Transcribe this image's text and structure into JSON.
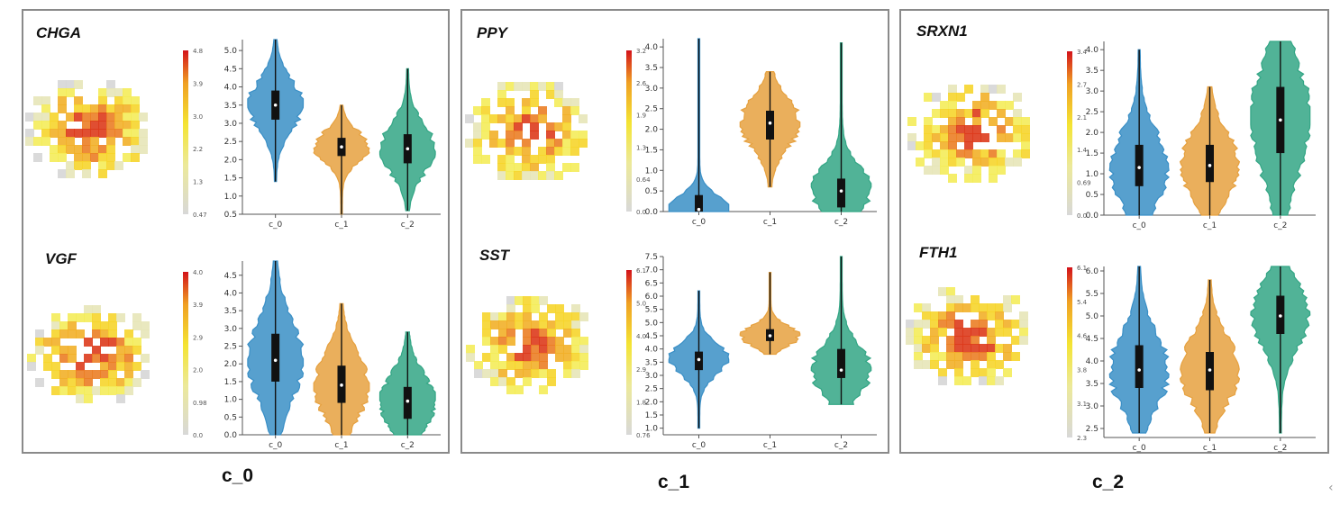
{
  "colors": {
    "c_0": "#3a8fc6",
    "c_1": "#e6a13f",
    "c_2": "#33a685",
    "heat_low": "#d3d3d3",
    "heat_mid": "#f2e431",
    "heat_high": "#d6161b"
  },
  "clusters": [
    {
      "label": "c_0"
    },
    {
      "label": "c_1"
    },
    {
      "label": "c_2"
    }
  ],
  "chart_data": [
    {
      "type": "violin",
      "gene": "CHGA",
      "categories": [
        "c_0",
        "c_1",
        "c_2"
      ],
      "ylim": [
        0.5,
        5.3
      ],
      "yticks": [
        "0.5",
        "1.0",
        "1.5",
        "2.0",
        "2.5",
        "3.0",
        "3.5",
        "4.0",
        "4.5",
        "5.0"
      ],
      "medians": [
        3.5,
        2.35,
        2.3
      ],
      "q1": [
        3.1,
        2.1,
        1.9
      ],
      "q3": [
        3.9,
        2.6,
        2.7
      ],
      "whisker_min": [
        1.4,
        0.5,
        0.6
      ],
      "whisker_max": [
        5.3,
        3.5,
        4.5
      ],
      "colorbar_ticks": [
        "4.8",
        "3.9",
        "3.0",
        "2.2",
        "1.3",
        "0.47"
      ]
    },
    {
      "type": "violin",
      "gene": "VGF",
      "categories": [
        "c_0",
        "c_1",
        "c_2"
      ],
      "ylim": [
        0.0,
        4.9
      ],
      "yticks": [
        "0.0",
        "0.5",
        "1.0",
        "1.5",
        "2.0",
        "2.5",
        "3.0",
        "3.5",
        "4.0",
        "4.5"
      ],
      "medians": [
        2.1,
        1.4,
        0.95
      ],
      "q1": [
        1.5,
        0.9,
        0.45
      ],
      "q3": [
        2.85,
        1.95,
        1.35
      ],
      "whisker_min": [
        0.0,
        0.0,
        0.0
      ],
      "whisker_max": [
        4.9,
        3.7,
        2.9
      ],
      "colorbar_ticks": [
        "4.0",
        "3.9",
        "2.9",
        "2.0",
        "0.98",
        "0.0"
      ]
    },
    {
      "type": "violin",
      "gene": "PPY",
      "categories": [
        "c_0",
        "c_1",
        "c_2"
      ],
      "ylim": [
        0.0,
        4.2
      ],
      "yticks": [
        "0.0",
        "0.5",
        "1.0",
        "1.5",
        "2.0",
        "2.5",
        "3.0",
        "3.5",
        "4.0"
      ],
      "medians": [
        0.05,
        2.15,
        0.5
      ],
      "q1": [
        0.0,
        1.75,
        0.1
      ],
      "q3": [
        0.4,
        2.45,
        0.8
      ],
      "whisker_min": [
        0.0,
        0.6,
        0.0
      ],
      "whisker_max": [
        4.2,
        3.4,
        4.1
      ],
      "colorbar_ticks": [
        "3.2",
        "2.6",
        "1.9",
        "1.3",
        "0.64",
        "0.0"
      ]
    },
    {
      "type": "violin",
      "gene": "SST",
      "categories": [
        "c_0",
        "c_1",
        "c_2"
      ],
      "ylim": [
        0.75,
        7.5
      ],
      "yticks": [
        "1.0",
        "1.5",
        "2.0",
        "2.5",
        "3.0",
        "3.5",
        "4.0",
        "4.5",
        "5.0",
        "5.5",
        "6.0",
        "6.5",
        "7.0",
        "7.5"
      ],
      "medians": [
        3.6,
        4.5,
        3.2
      ],
      "q1": [
        3.2,
        4.3,
        2.9
      ],
      "q3": [
        3.9,
        4.75,
        4.0
      ],
      "whisker_min": [
        1.0,
        3.8,
        1.9
      ],
      "whisker_max": [
        6.2,
        6.9,
        7.5
      ],
      "colorbar_ticks": [
        "6.1",
        "5.0",
        "4.0",
        "2.9",
        "1.8",
        "0.76"
      ]
    },
    {
      "type": "violin",
      "gene": "SRXN1",
      "categories": [
        "c_0",
        "c_1",
        "c_2"
      ],
      "ylim": [
        0.0,
        4.2
      ],
      "yticks": [
        "0.0",
        "0.5",
        "1.0",
        "1.5",
        "2.0",
        "2.5",
        "3.0",
        "3.5",
        "4.0"
      ],
      "medians": [
        1.15,
        1.2,
        2.3
      ],
      "q1": [
        0.7,
        0.8,
        1.5
      ],
      "q3": [
        1.7,
        1.7,
        3.1
      ],
      "whisker_min": [
        0.0,
        0.0,
        0.0
      ],
      "whisker_max": [
        4.0,
        3.1,
        4.2
      ],
      "colorbar_ticks": [
        "3.4",
        "2.7",
        "2.1",
        "1.4",
        "0.69",
        "0.0"
      ]
    },
    {
      "type": "violin",
      "gene": "FTH1",
      "categories": [
        "c_0",
        "c_1",
        "c_2"
      ],
      "ylim": [
        2.3,
        6.1
      ],
      "yticks": [
        "2.5",
        "3.0",
        "3.5",
        "4.0",
        "4.5",
        "5.0",
        "5.5",
        "6.0"
      ],
      "medians": [
        3.8,
        3.8,
        5.0
      ],
      "q1": [
        3.4,
        3.35,
        4.6
      ],
      "q3": [
        4.35,
        4.2,
        5.45
      ],
      "whisker_min": [
        2.4,
        2.4,
        2.4
      ],
      "whisker_max": [
        6.1,
        5.8,
        6.1
      ],
      "colorbar_ticks": [
        "6.1",
        "5.4",
        "4.6",
        "3.8",
        "3.1",
        "2.3"
      ]
    }
  ]
}
